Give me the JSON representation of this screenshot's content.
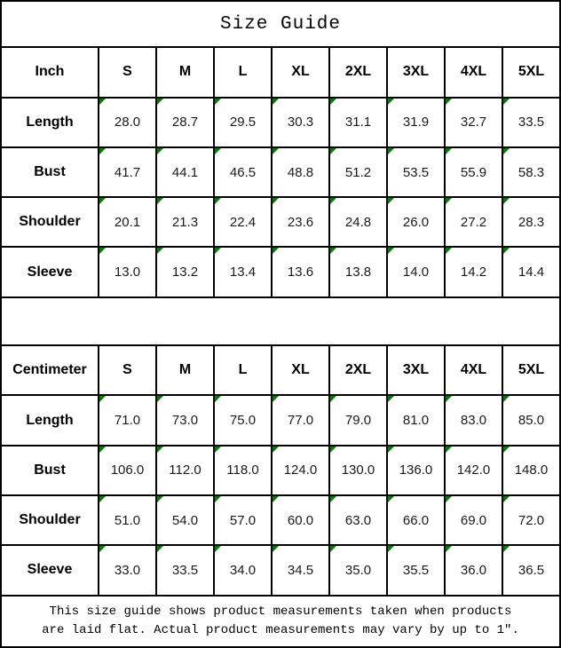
{
  "title": "Size Guide",
  "colors": {
    "indicator_green": "#008000",
    "border_black": "#000000"
  },
  "inch_table": {
    "unit_label": "Inch",
    "sizes": [
      "S",
      "M",
      "L",
      "XL",
      "2XL",
      "3XL",
      "4XL",
      "5XL"
    ],
    "rows": [
      {
        "label": "Length",
        "values": [
          "28.0",
          "28.7",
          "29.5",
          "30.3",
          "31.1",
          "31.9",
          "32.7",
          "33.5"
        ]
      },
      {
        "label": "Bust",
        "values": [
          "41.7",
          "44.1",
          "46.5",
          "48.8",
          "51.2",
          "53.5",
          "55.9",
          "58.3"
        ]
      },
      {
        "label": "Shoulder",
        "values": [
          "20.1",
          "21.3",
          "22.4",
          "23.6",
          "24.8",
          "26.0",
          "27.2",
          "28.3"
        ]
      },
      {
        "label": "Sleeve",
        "values": [
          "13.0",
          "13.2",
          "13.4",
          "13.6",
          "13.8",
          "14.0",
          "14.2",
          "14.4"
        ]
      }
    ]
  },
  "cm_table": {
    "unit_label": "Centimeter",
    "sizes": [
      "S",
      "M",
      "L",
      "XL",
      "2XL",
      "3XL",
      "4XL",
      "5XL"
    ],
    "rows": [
      {
        "label": "Length",
        "values": [
          "71.0",
          "73.0",
          "75.0",
          "77.0",
          "79.0",
          "81.0",
          "83.0",
          "85.0"
        ]
      },
      {
        "label": "Bust",
        "values": [
          "106.0",
          "112.0",
          "118.0",
          "124.0",
          "130.0",
          "136.0",
          "142.0",
          "148.0"
        ]
      },
      {
        "label": "Shoulder",
        "values": [
          "51.0",
          "54.0",
          "57.0",
          "60.0",
          "63.0",
          "66.0",
          "69.0",
          "72.0"
        ]
      },
      {
        "label": "Sleeve",
        "values": [
          "33.0",
          "33.5",
          "34.0",
          "34.5",
          "35.0",
          "35.5",
          "36.0",
          "36.5"
        ]
      }
    ]
  },
  "footer": {
    "line1": "This size guide shows product measurements taken when products",
    "line2": "are laid flat. Actual product measurements may vary by up to 1″."
  }
}
